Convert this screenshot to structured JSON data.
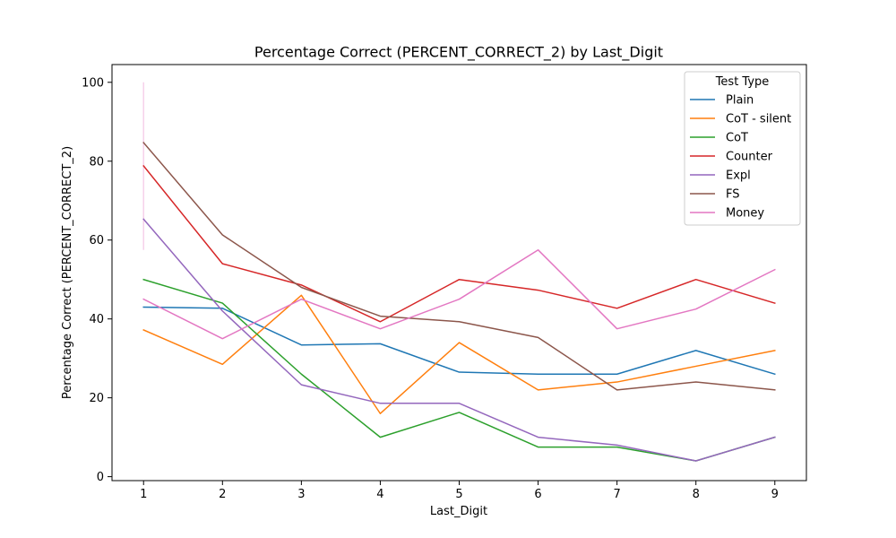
{
  "chart_data": {
    "type": "line",
    "title": "Percentage Correct (PERCENT_CORRECT_2) by Last_Digit",
    "xlabel": "Last_Digit",
    "ylabel": "Percentage Correct (PERCENT_CORRECT_2)",
    "x": [
      1,
      2,
      3,
      4,
      5,
      6,
      7,
      8,
      9
    ],
    "xticks": [
      1,
      2,
      3,
      4,
      5,
      6,
      7,
      8,
      9
    ],
    "xlim": [
      0.6,
      9.4
    ],
    "yticks": [
      0,
      20,
      40,
      60,
      80,
      100
    ],
    "ylim": [
      -1,
      104.5
    ],
    "grid": false,
    "legend": {
      "title": "Test Type",
      "placement": "top-right"
    },
    "series": [
      {
        "name": "Plain",
        "color": "#1f77b4",
        "values": [
          43,
          42.7,
          33.4,
          33.7,
          26.5,
          26,
          26,
          32,
          26
        ]
      },
      {
        "name": "CoT - silent",
        "color": "#ff7f0e",
        "values": [
          37.2,
          28.5,
          46,
          16,
          34,
          22,
          24,
          28,
          32
        ]
      },
      {
        "name": "CoT",
        "color": "#2ca02c",
        "values": [
          50,
          44,
          26,
          10,
          16.3,
          7.5,
          7.5,
          4,
          10
        ]
      },
      {
        "name": "Counter",
        "color": "#d62728",
        "values": [
          78.8,
          54,
          48.6,
          39.3,
          50,
          47.3,
          42.7,
          50,
          44
        ]
      },
      {
        "name": "Expl",
        "color": "#9467bd",
        "values": [
          65.3,
          42,
          23.3,
          18.6,
          18.6,
          10,
          8,
          4,
          10
        ]
      },
      {
        "name": "FS",
        "color": "#8c564b",
        "values": [
          84.7,
          61.3,
          48,
          40.7,
          39.3,
          35.3,
          22,
          24,
          22
        ]
      },
      {
        "name": "Money",
        "color": "#e377c2",
        "values": [
          45,
          35,
          45,
          37.5,
          45,
          57.5,
          37.5,
          42.5,
          52.5
        ]
      }
    ],
    "error_bars": [
      {
        "series": "Money",
        "x": 1,
        "low": 57.5,
        "high": 100
      }
    ]
  }
}
